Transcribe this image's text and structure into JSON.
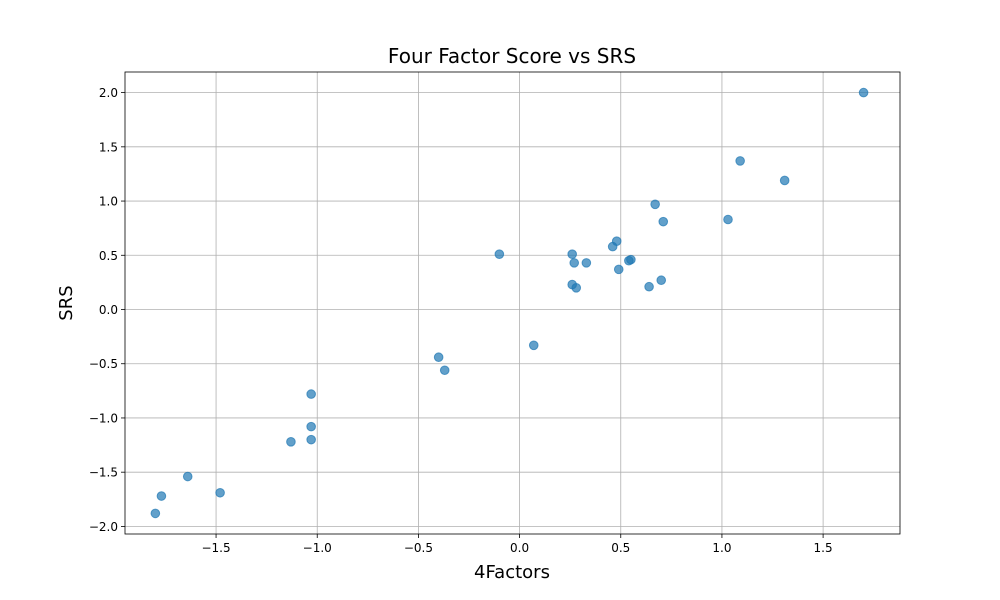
{
  "chart_data": {
    "type": "scatter",
    "title": "Four Factor Score vs SRS",
    "xlabel": "4Factors",
    "ylabel": "SRS",
    "xlim": [
      -1.95,
      1.88
    ],
    "ylim": [
      -2.07,
      2.19
    ],
    "xticks": [
      -1.5,
      -1.0,
      -0.5,
      0.0,
      0.5,
      1.0,
      1.5
    ],
    "yticks": [
      -2.0,
      -1.5,
      -1.0,
      -0.5,
      0.0,
      0.5,
      1.0,
      1.5,
      2.0
    ],
    "xtick_labels": [
      "−1.5",
      "−1.0",
      "−0.5",
      "0.0",
      "0.5",
      "1.0",
      "1.5"
    ],
    "ytick_labels": [
      "−2.0",
      "−1.5",
      "−1.0",
      "−0.5",
      "0.0",
      "0.5",
      "1.0",
      "1.5",
      "2.0"
    ],
    "grid": true,
    "marker_color": "#1f77b4",
    "marker_alpha": 0.7,
    "points": [
      {
        "x": 1.7,
        "y": 2.0
      },
      {
        "x": 1.09,
        "y": 1.37
      },
      {
        "x": 1.31,
        "y": 1.19
      },
      {
        "x": 0.67,
        "y": 0.97
      },
      {
        "x": 1.03,
        "y": 0.83
      },
      {
        "x": 0.71,
        "y": 0.81
      },
      {
        "x": 0.48,
        "y": 0.63
      },
      {
        "x": 0.46,
        "y": 0.58
      },
      {
        "x": -0.1,
        "y": 0.51
      },
      {
        "x": 0.26,
        "y": 0.51
      },
      {
        "x": 0.55,
        "y": 0.46
      },
      {
        "x": 0.54,
        "y": 0.45
      },
      {
        "x": 0.27,
        "y": 0.43
      },
      {
        "x": 0.33,
        "y": 0.43
      },
      {
        "x": 0.49,
        "y": 0.37
      },
      {
        "x": 0.7,
        "y": 0.27
      },
      {
        "x": 0.26,
        "y": 0.23
      },
      {
        "x": 0.64,
        "y": 0.21
      },
      {
        "x": 0.28,
        "y": 0.2
      },
      {
        "x": 0.07,
        "y": -0.33
      },
      {
        "x": -0.4,
        "y": -0.44
      },
      {
        "x": -0.37,
        "y": -0.56
      },
      {
        "x": -1.03,
        "y": -0.78
      },
      {
        "x": -1.03,
        "y": -1.08
      },
      {
        "x": -1.03,
        "y": -1.2
      },
      {
        "x": -1.13,
        "y": -1.22
      },
      {
        "x": -1.64,
        "y": -1.54
      },
      {
        "x": -1.48,
        "y": -1.69
      },
      {
        "x": -1.77,
        "y": -1.72
      },
      {
        "x": -1.8,
        "y": -1.88
      }
    ]
  }
}
